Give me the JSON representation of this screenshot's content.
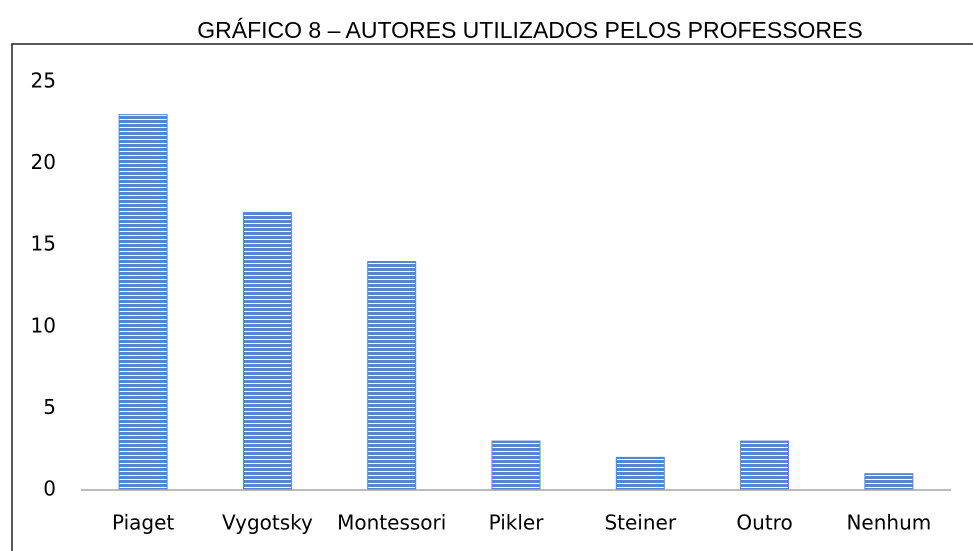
{
  "chart_data": {
    "type": "bar",
    "title": "GRÁFICO 8 – AUTORES UTILIZADOS PELOS PROFESSORES",
    "categories": [
      "Piaget",
      "Vygotsky",
      "Montessori",
      "Pikler",
      "Steiner",
      "Outro",
      "Nenhum"
    ],
    "values": [
      23,
      17,
      14,
      3,
      2,
      3,
      1
    ],
    "color": "#5b83d0",
    "ylim": [
      0,
      25
    ],
    "yticks": [
      0,
      5,
      10,
      15,
      20,
      25
    ],
    "grid": false
  }
}
